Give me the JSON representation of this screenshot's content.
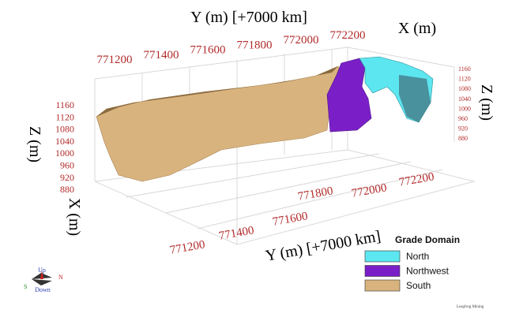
{
  "scene": {
    "top_axis": {
      "label": "Y (m) [+7000 km]",
      "ticks": [
        771200,
        771400,
        771600,
        771800,
        772000,
        772200
      ]
    },
    "top_x_label": "X (m)",
    "bottom_axis": {
      "label": "Y (m) [+7000 km]",
      "ticks": [
        771200,
        771400,
        771600,
        771800,
        772000,
        772200
      ]
    },
    "left_z_axis": {
      "label": "Z (m)",
      "ticks": [
        1160,
        1120,
        1080,
        1040,
        1000,
        960,
        920,
        880
      ]
    },
    "right_z_axis": {
      "label": "Z (m)",
      "ticks": [
        1160,
        1120,
        1080,
        1040,
        1000,
        960,
        920,
        880
      ]
    },
    "left_x_label": "X (m)",
    "legend": {
      "title": "Grade Domain",
      "items": [
        {
          "name": "North",
          "color": "#5ce6f0"
        },
        {
          "name": "Northwest",
          "color": "#7a1fc8"
        },
        {
          "name": "South",
          "color": "#d9b37e"
        }
      ]
    },
    "compass": {
      "up": "Up",
      "down": "Down",
      "south": "S",
      "north": "N"
    },
    "credit": "Leapfrog Mining"
  }
}
